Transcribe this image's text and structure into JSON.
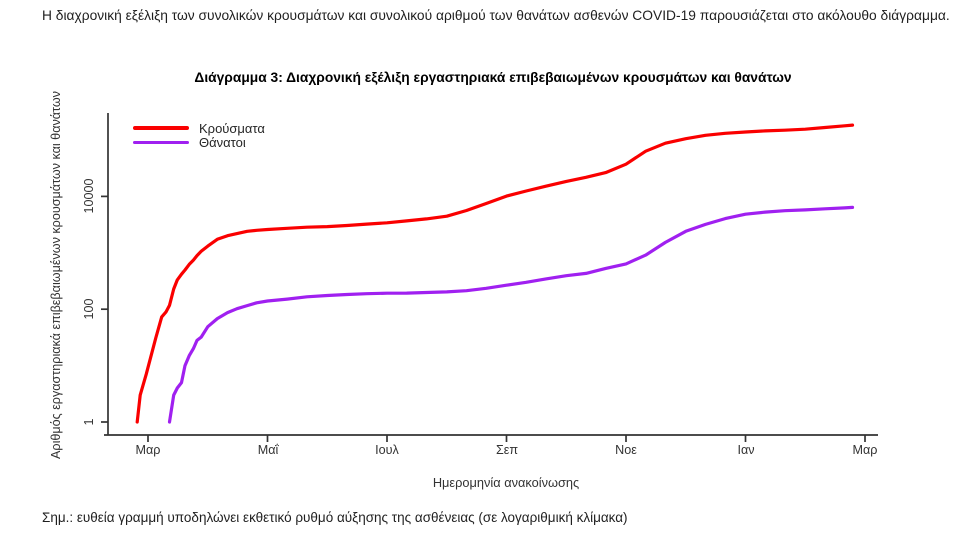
{
  "page": {
    "intro_paragraph": "Η διαχρονική εξέλιξη των συνολικών κρουσμάτων και συνολικού αριθμού των θανάτων ασθενών COVID-19 παρουσιάζεται στο ακόλουθο διάγραμμα.",
    "note": "Σημ.: ευθεία γραμμή υποδηλώνει εκθετικό ρυθμό αύξησης της ασθένειας (σε λογαριθμική κλίμακα)"
  },
  "chart_data": {
    "type": "line",
    "title": "Διάγραμμα 3: Διαχρονική εξέλιξη εργαστηριακά επιβεβαιωμένων κρουσμάτων και θανάτων",
    "xlabel": "Ημερομηνία ανακοίνωσης",
    "ylabel": "Αριθμός εργαστηριακά επιβεβαιωμένων κρουσμάτων και θανάτων",
    "y_scale": "log10",
    "grid": "off",
    "legend_position": "top-left-inside",
    "y_ticks": [
      1,
      100,
      10000
    ],
    "y_tick_labels": [
      "1",
      "100",
      "10000"
    ],
    "x_tick_labels": [
      "Μαρ",
      "Μαΐ",
      "Ιουλ",
      "Σεπ",
      "Νοε",
      "Ιαν",
      "Μαρ"
    ],
    "x_unit": "months since 1 Mar 2020, ticks every 2 months",
    "ylim": [
      1,
      250000
    ],
    "axis_color": "#333333",
    "legend": [
      {
        "name": "Κρούσματα",
        "color": "#fa0000"
      },
      {
        "name": "Θάνατοι",
        "color": "#a020f0"
      }
    ],
    "series": [
      {
        "name": "Κρούσματα",
        "color": "#fa0000",
        "points": [
          [
            -0.18,
            1
          ],
          [
            -0.13,
            3
          ],
          [
            -0.03,
            7
          ],
          [
            0.13,
            31
          ],
          [
            0.23,
            73
          ],
          [
            0.3,
            89
          ],
          [
            0.36,
            117
          ],
          [
            0.43,
            228
          ],
          [
            0.49,
            331
          ],
          [
            0.56,
            418
          ],
          [
            0.62,
            495
          ],
          [
            0.69,
            624
          ],
          [
            0.76,
            743
          ],
          [
            0.82,
            892
          ],
          [
            0.89,
            1061
          ],
          [
            1.0,
            1314
          ],
          [
            1.16,
            1735
          ],
          [
            1.33,
            2011
          ],
          [
            1.49,
            2192
          ],
          [
            1.66,
            2401
          ],
          [
            1.82,
            2506
          ],
          [
            2.0,
            2591
          ],
          [
            2.33,
            2716
          ],
          [
            2.66,
            2840
          ],
          [
            3.0,
            2917
          ],
          [
            3.33,
            3049
          ],
          [
            3.66,
            3227
          ],
          [
            4.0,
            3409
          ],
          [
            4.33,
            3672
          ],
          [
            4.66,
            3983
          ],
          [
            5.0,
            4447
          ],
          [
            5.33,
            5623
          ],
          [
            5.66,
            7472
          ],
          [
            6.0,
            10134
          ],
          [
            6.33,
            12452
          ],
          [
            6.66,
            15142
          ],
          [
            7.0,
            18475
          ],
          [
            7.33,
            21772
          ],
          [
            7.66,
            26469
          ],
          [
            8.0,
            37196
          ],
          [
            8.33,
            63321
          ],
          [
            8.66,
            87812
          ],
          [
            9.0,
            105271
          ],
          [
            9.33,
            120926
          ],
          [
            9.66,
            131356
          ],
          [
            10.0,
            138850
          ],
          [
            10.33,
            144738
          ],
          [
            10.66,
            149279
          ],
          [
            11.0,
            155678
          ],
          [
            11.33,
            166374
          ],
          [
            11.66,
            178918
          ],
          [
            11.79,
            183686
          ]
        ]
      },
      {
        "name": "Θάνατοι",
        "color": "#a020f0",
        "points": [
          [
            0.36,
            1
          ],
          [
            0.43,
            3
          ],
          [
            0.49,
            4
          ],
          [
            0.56,
            5
          ],
          [
            0.62,
            10
          ],
          [
            0.69,
            15
          ],
          [
            0.76,
            20
          ],
          [
            0.82,
            28
          ],
          [
            0.89,
            32
          ],
          [
            1.0,
            49
          ],
          [
            1.16,
            68
          ],
          [
            1.33,
            87
          ],
          [
            1.49,
            102
          ],
          [
            1.66,
            116
          ],
          [
            1.82,
            130
          ],
          [
            2.0,
            140
          ],
          [
            2.33,
            151
          ],
          [
            2.66,
            166
          ],
          [
            3.0,
            175
          ],
          [
            3.33,
            182
          ],
          [
            3.66,
            188
          ],
          [
            4.0,
            192
          ],
          [
            4.33,
            193
          ],
          [
            4.66,
            198
          ],
          [
            5.0,
            203
          ],
          [
            5.33,
            213
          ],
          [
            5.66,
            235
          ],
          [
            6.0,
            266
          ],
          [
            6.33,
            300
          ],
          [
            6.66,
            344
          ],
          [
            7.0,
            393
          ],
          [
            7.33,
            431
          ],
          [
            7.66,
            528
          ],
          [
            8.0,
            635
          ],
          [
            8.33,
            909
          ],
          [
            8.66,
            1527
          ],
          [
            9.0,
            2406
          ],
          [
            9.33,
            3194
          ],
          [
            9.66,
            4044
          ],
          [
            10.0,
            4838
          ],
          [
            10.33,
            5263
          ],
          [
            10.66,
            5570
          ],
          [
            11.0,
            5764
          ],
          [
            11.33,
            6017
          ],
          [
            11.66,
            6249
          ],
          [
            11.79,
            6371
          ]
        ]
      }
    ]
  }
}
